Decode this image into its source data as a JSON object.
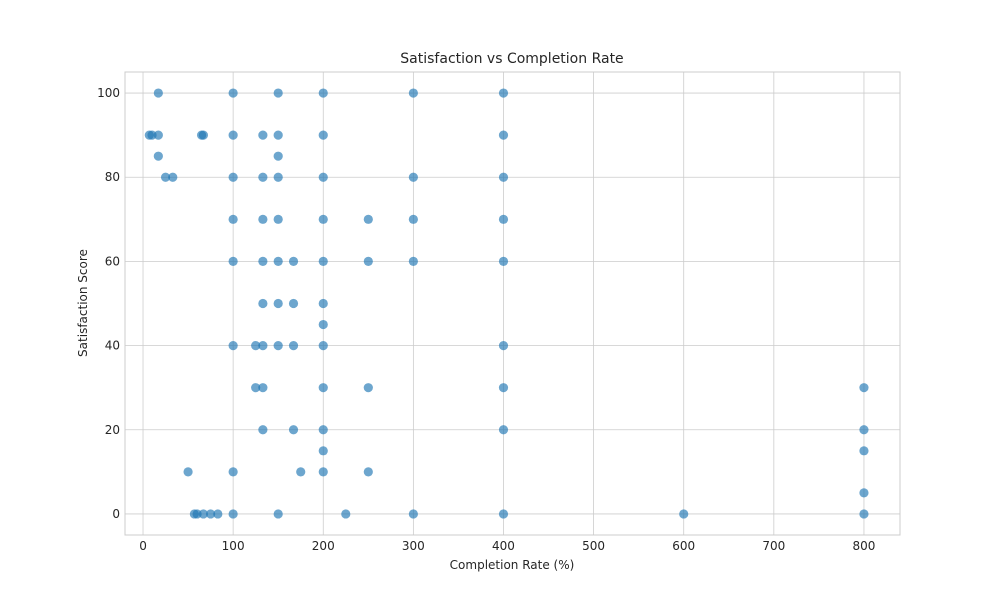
{
  "chart_data": {
    "type": "scatter",
    "title": "Satisfaction vs Completion Rate",
    "xlabel": "Completion Rate (%)",
    "ylabel": "Satisfaction Score",
    "xlim": [
      -20,
      840
    ],
    "ylim": [
      -5,
      105
    ],
    "xticks": [
      0,
      100,
      200,
      300,
      400,
      500,
      600,
      700,
      800
    ],
    "yticks": [
      0,
      20,
      40,
      60,
      80,
      100
    ],
    "grid": true,
    "marker_color": "#1f77b4",
    "points": [
      {
        "x": 17,
        "y": 100
      },
      {
        "x": 100,
        "y": 100
      },
      {
        "x": 150,
        "y": 100
      },
      {
        "x": 200,
        "y": 100
      },
      {
        "x": 300,
        "y": 100
      },
      {
        "x": 400,
        "y": 100
      },
      {
        "x": 7,
        "y": 90
      },
      {
        "x": 10,
        "y": 90
      },
      {
        "x": 17,
        "y": 90
      },
      {
        "x": 65,
        "y": 90
      },
      {
        "x": 67,
        "y": 90
      },
      {
        "x": 100,
        "y": 90
      },
      {
        "x": 133,
        "y": 90
      },
      {
        "x": 150,
        "y": 90
      },
      {
        "x": 200,
        "y": 90
      },
      {
        "x": 400,
        "y": 90
      },
      {
        "x": 17,
        "y": 85
      },
      {
        "x": 150,
        "y": 85
      },
      {
        "x": 25,
        "y": 80
      },
      {
        "x": 33,
        "y": 80
      },
      {
        "x": 100,
        "y": 80
      },
      {
        "x": 133,
        "y": 80
      },
      {
        "x": 150,
        "y": 80
      },
      {
        "x": 200,
        "y": 80
      },
      {
        "x": 300,
        "y": 80
      },
      {
        "x": 400,
        "y": 80
      },
      {
        "x": 100,
        "y": 70
      },
      {
        "x": 133,
        "y": 70
      },
      {
        "x": 150,
        "y": 70
      },
      {
        "x": 200,
        "y": 70
      },
      {
        "x": 250,
        "y": 70
      },
      {
        "x": 300,
        "y": 70
      },
      {
        "x": 400,
        "y": 70
      },
      {
        "x": 100,
        "y": 60
      },
      {
        "x": 133,
        "y": 60
      },
      {
        "x": 150,
        "y": 60
      },
      {
        "x": 167,
        "y": 60
      },
      {
        "x": 200,
        "y": 60
      },
      {
        "x": 250,
        "y": 60
      },
      {
        "x": 300,
        "y": 60
      },
      {
        "x": 400,
        "y": 60
      },
      {
        "x": 133,
        "y": 50
      },
      {
        "x": 150,
        "y": 50
      },
      {
        "x": 167,
        "y": 50
      },
      {
        "x": 200,
        "y": 50
      },
      {
        "x": 200,
        "y": 45
      },
      {
        "x": 100,
        "y": 40
      },
      {
        "x": 125,
        "y": 40
      },
      {
        "x": 133,
        "y": 40
      },
      {
        "x": 150,
        "y": 40
      },
      {
        "x": 167,
        "y": 40
      },
      {
        "x": 200,
        "y": 40
      },
      {
        "x": 400,
        "y": 40
      },
      {
        "x": 125,
        "y": 30
      },
      {
        "x": 133,
        "y": 30
      },
      {
        "x": 200,
        "y": 30
      },
      {
        "x": 250,
        "y": 30
      },
      {
        "x": 400,
        "y": 30
      },
      {
        "x": 800,
        "y": 30
      },
      {
        "x": 133,
        "y": 20
      },
      {
        "x": 167,
        "y": 20
      },
      {
        "x": 200,
        "y": 20
      },
      {
        "x": 400,
        "y": 20
      },
      {
        "x": 800,
        "y": 20
      },
      {
        "x": 200,
        "y": 15
      },
      {
        "x": 800,
        "y": 15
      },
      {
        "x": 50,
        "y": 10
      },
      {
        "x": 100,
        "y": 10
      },
      {
        "x": 175,
        "y": 10
      },
      {
        "x": 200,
        "y": 10
      },
      {
        "x": 250,
        "y": 10
      },
      {
        "x": 800,
        "y": 5
      },
      {
        "x": 57,
        "y": 0
      },
      {
        "x": 60,
        "y": 0
      },
      {
        "x": 67,
        "y": 0
      },
      {
        "x": 75,
        "y": 0
      },
      {
        "x": 83,
        "y": 0
      },
      {
        "x": 100,
        "y": 0
      },
      {
        "x": 150,
        "y": 0
      },
      {
        "x": 225,
        "y": 0
      },
      {
        "x": 300,
        "y": 0
      },
      {
        "x": 400,
        "y": 0
      },
      {
        "x": 600,
        "y": 0
      },
      {
        "x": 800,
        "y": 0
      }
    ]
  }
}
